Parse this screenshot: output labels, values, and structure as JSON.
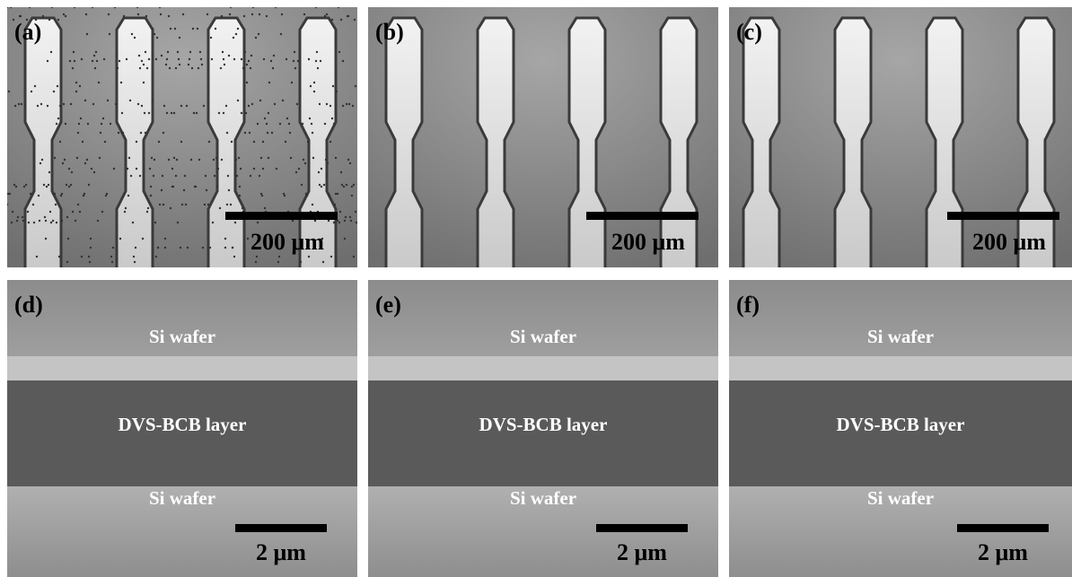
{
  "panels": [
    {
      "label": "(a)",
      "scale_bar": "200 μm"
    },
    {
      "label": "(b)",
      "scale_bar": "200 μm"
    },
    {
      "label": "(c)",
      "scale_bar": "200 μm"
    },
    {
      "label": "(d)",
      "scale_bar": "2 μm",
      "annotations": [
        "Si wafer",
        "DVS-BCB layer",
        "Si wafer"
      ]
    },
    {
      "label": "(e)",
      "scale_bar": "2 μm",
      "annotations": [
        "Si wafer",
        "DVS-BCB layer",
        "Si wafer"
      ]
    },
    {
      "label": "(f)",
      "scale_bar": "2 μm",
      "annotations": [
        "Si wafer",
        "DVS-BCB layer",
        "Si wafer"
      ]
    }
  ]
}
